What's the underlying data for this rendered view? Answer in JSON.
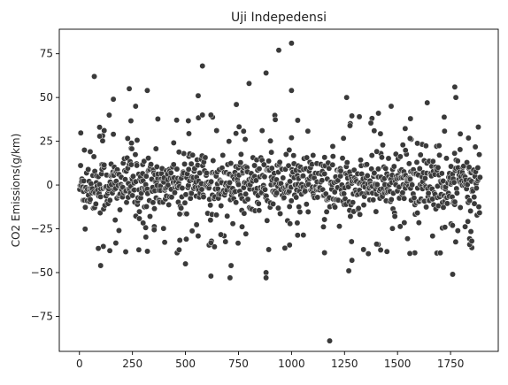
{
  "chart_data": {
    "type": "scatter",
    "title": "Uji Indepedensi",
    "xlabel": "",
    "ylabel": "CO2 Emissions(g/km)",
    "xlim": [
      -95,
      1975
    ],
    "ylim": [
      -95,
      89
    ],
    "x_ticks": [
      0,
      250,
      500,
      750,
      1000,
      1250,
      1500,
      1750
    ],
    "y_ticks": [
      -75,
      -50,
      -25,
      0,
      25,
      50,
      75
    ],
    "marker_color": "#3a3a3a",
    "marker_edge_color": "#ffffff",
    "grid": false,
    "legend": "none",
    "n_points": 1890,
    "bulk_range": [
      -18,
      18
    ],
    "outliers": [
      [
        70,
        62
      ],
      [
        95,
        33
      ],
      [
        100,
        -46
      ],
      [
        160,
        49
      ],
      [
        160,
        29
      ],
      [
        235,
        55
      ],
      [
        265,
        45
      ],
      [
        280,
        -37
      ],
      [
        320,
        54
      ],
      [
        470,
        -37
      ],
      [
        500,
        -45
      ],
      [
        560,
        51
      ],
      [
        580,
        68
      ],
      [
        580,
        40
      ],
      [
        620,
        40
      ],
      [
        620,
        -52
      ],
      [
        620,
        -33
      ],
      [
        710,
        -53
      ],
      [
        715,
        -46
      ],
      [
        740,
        46
      ],
      [
        800,
        58
      ],
      [
        880,
        64
      ],
      [
        880,
        -50
      ],
      [
        880,
        -53
      ],
      [
        940,
        77
      ],
      [
        1000,
        81
      ],
      [
        1000,
        54
      ],
      [
        1000,
        27
      ],
      [
        1180,
        -89
      ],
      [
        1260,
        50
      ],
      [
        1270,
        -49
      ],
      [
        1285,
        -43
      ],
      [
        1320,
        39
      ],
      [
        1390,
        31
      ],
      [
        1410,
        41
      ],
      [
        1450,
        -38
      ],
      [
        1470,
        45
      ],
      [
        1640,
        47
      ],
      [
        1760,
        -51
      ],
      [
        1770,
        56
      ],
      [
        1775,
        50
      ],
      [
        1840,
        -34
      ],
      [
        1850,
        -32
      ]
    ]
  }
}
